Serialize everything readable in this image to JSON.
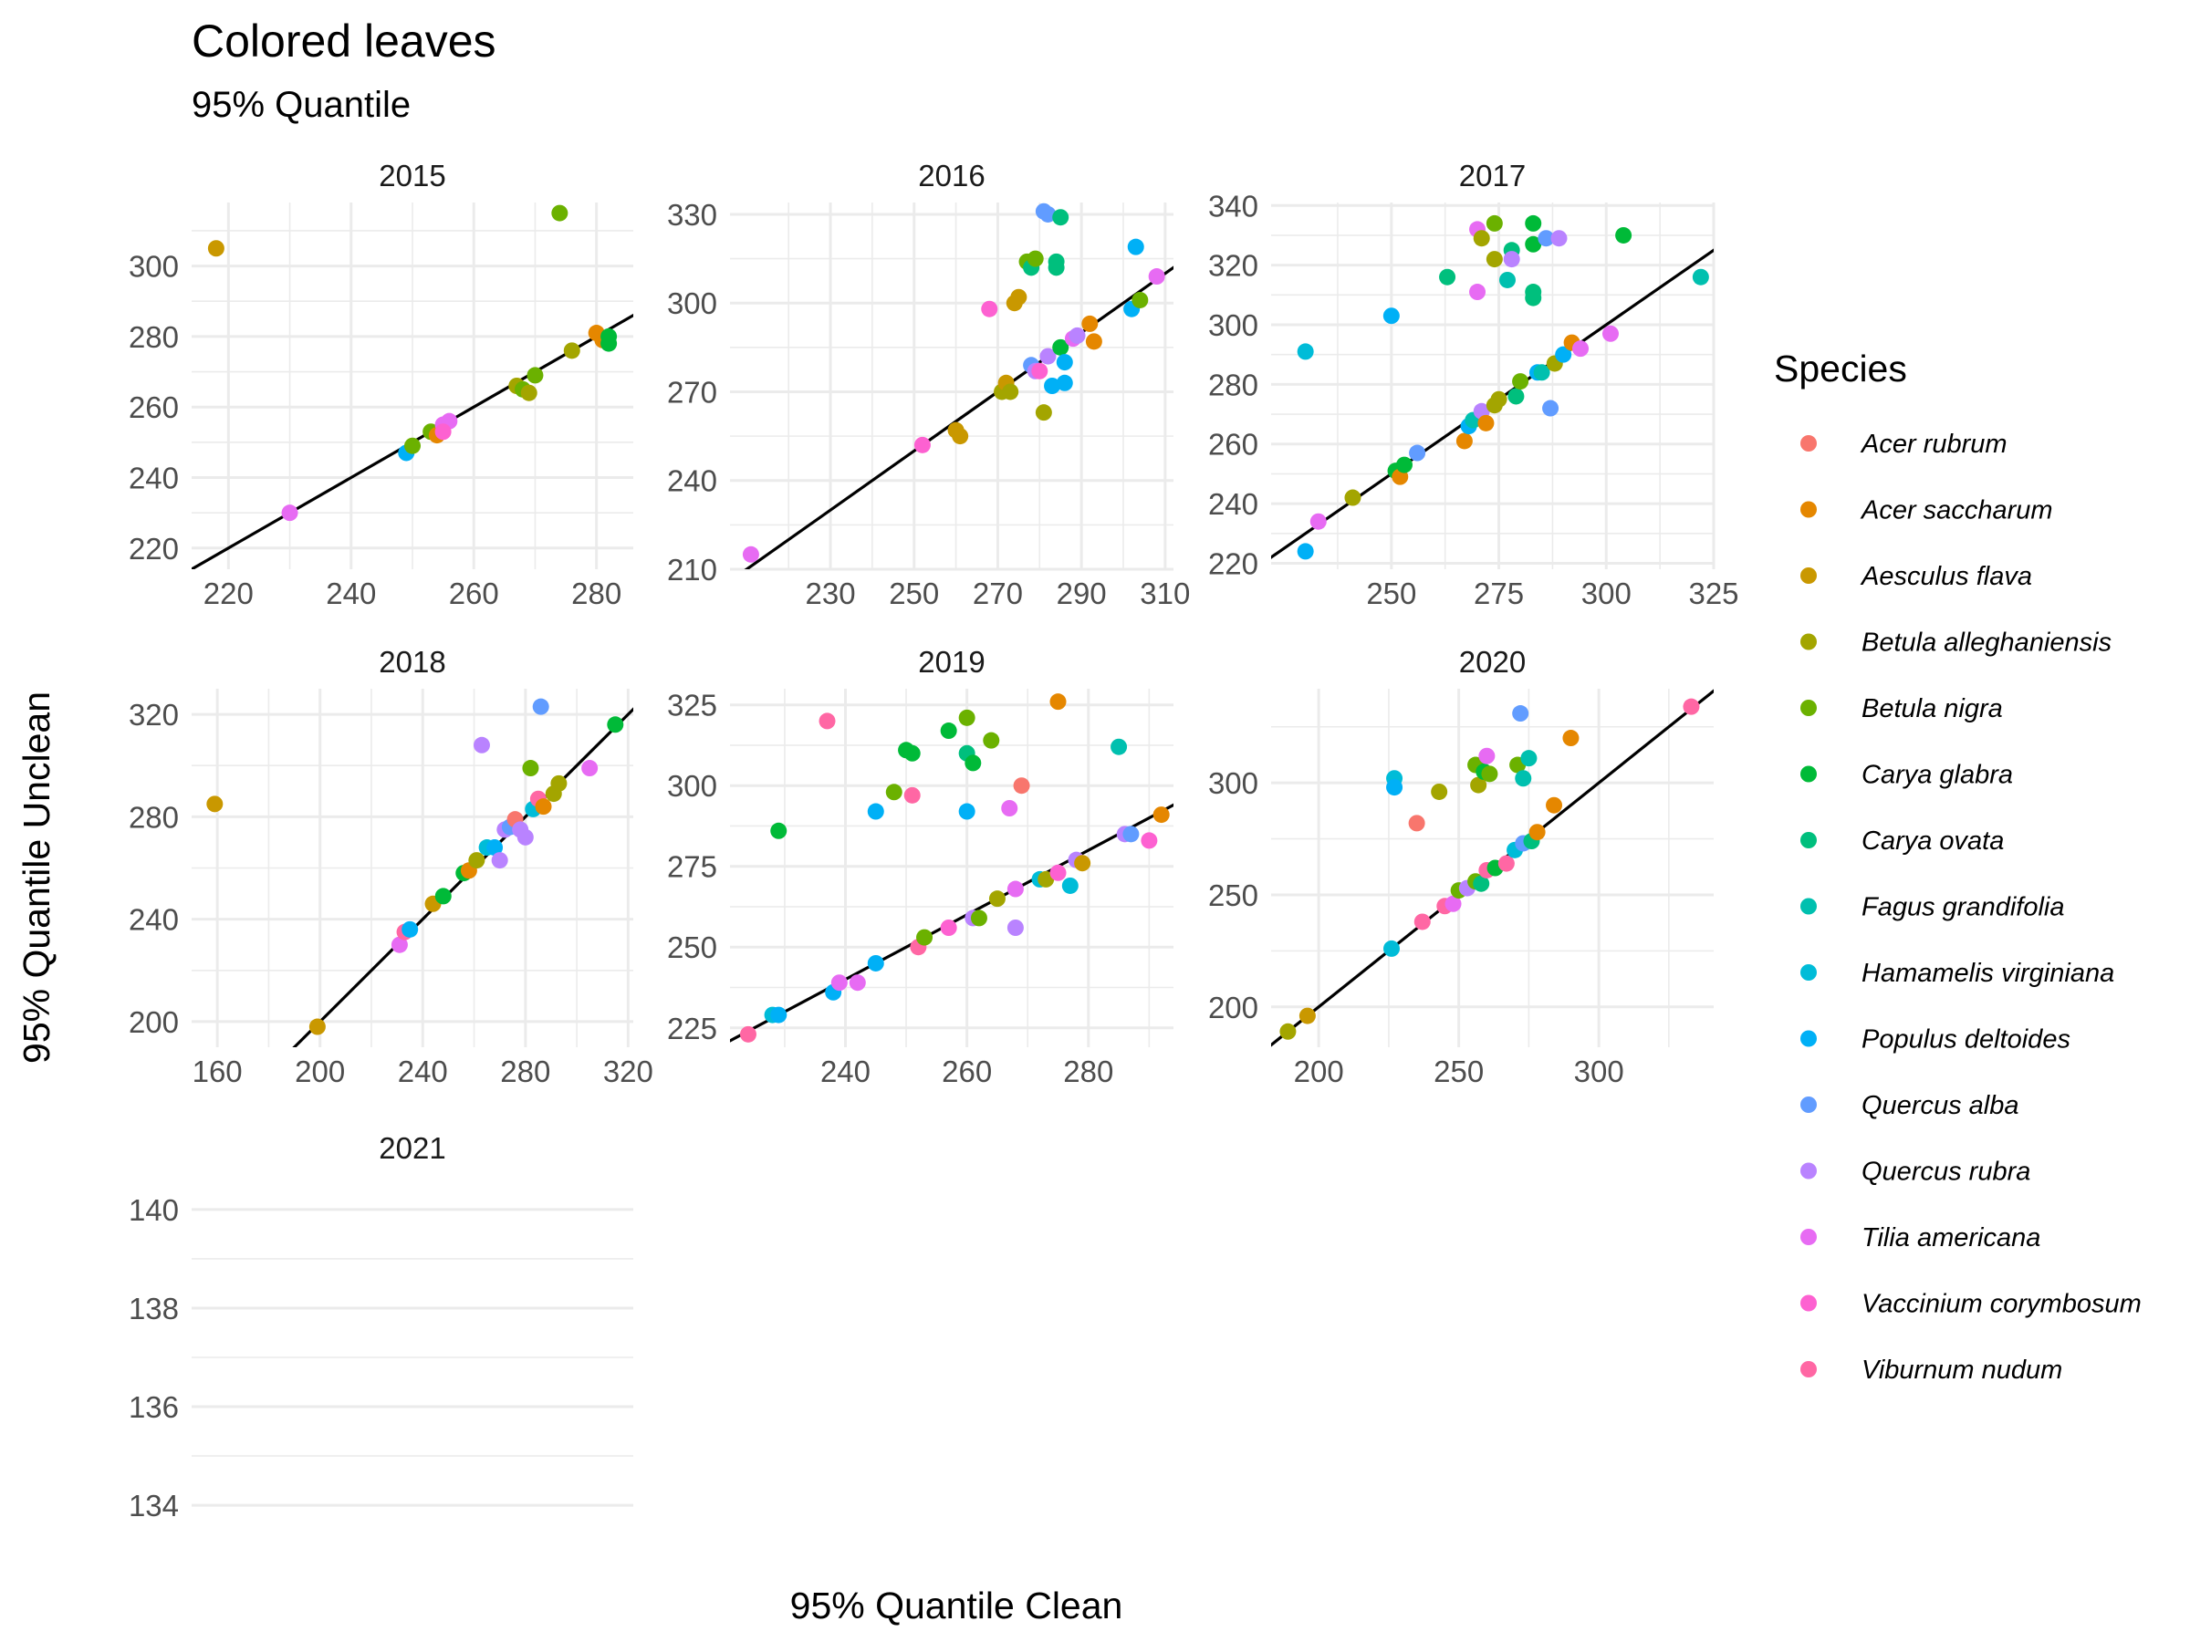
{
  "chart_data": {
    "type": "scatter",
    "title": "Colored leaves",
    "subtitle": "95% Quantile",
    "xlabel": "95% Quantile Clean",
    "ylabel": "95% Quantile Unclean",
    "legend": {
      "title": "Species",
      "placement": "right",
      "entries": [
        {
          "name": "Acer rubrum",
          "color": "#F8766D"
        },
        {
          "name": "Acer saccharum",
          "color": "#E58700"
        },
        {
          "name": "Aesculus flava",
          "color": "#C99800"
        },
        {
          "name": "Betula alleghaniensis",
          "color": "#A3A500"
        },
        {
          "name": "Betula nigra",
          "color": "#6BB100"
        },
        {
          "name": "Carya glabra",
          "color": "#00BA38"
        },
        {
          "name": "Carya ovata",
          "color": "#00BF7D"
        },
        {
          "name": "Fagus grandifolia",
          "color": "#00C0AF"
        },
        {
          "name": "Hamamelis virginiana",
          "color": "#00BCD8"
        },
        {
          "name": "Populus deltoides",
          "color": "#00B0F6"
        },
        {
          "name": "Quercus alba",
          "color": "#619CFF"
        },
        {
          "name": "Quercus rubra",
          "color": "#B983FF"
        },
        {
          "name": "Tilia americana",
          "color": "#E76BF3"
        },
        {
          "name": "Vaccinium corymbosum",
          "color": "#FD61D1"
        },
        {
          "name": "Viburnum nudum",
          "color": "#FF67A4"
        }
      ]
    },
    "grid": true,
    "reference_line": "y = x",
    "panels": [
      {
        "label": "2015",
        "xlim": [
          214,
          286
        ],
        "ylim": [
          214,
          318
        ],
        "xticks": [
          220,
          240,
          260,
          280
        ],
        "yticks": [
          220,
          240,
          260,
          280,
          300
        ],
        "points": [
          [
            218,
            305,
            2
          ],
          [
            274,
            315,
            4
          ],
          [
            230,
            230,
            12
          ],
          [
            249,
            247,
            9
          ],
          [
            250,
            249,
            4
          ],
          [
            253,
            253,
            4
          ],
          [
            254,
            252,
            1
          ],
          [
            255,
            255,
            12
          ],
          [
            256,
            256,
            12
          ],
          [
            255,
            253,
            13
          ],
          [
            267,
            266,
            3
          ],
          [
            268,
            265,
            4
          ],
          [
            269,
            264,
            3
          ],
          [
            270,
            269,
            4
          ],
          [
            276,
            276,
            3
          ],
          [
            280,
            281,
            1
          ],
          [
            281,
            279,
            1
          ],
          [
            282,
            280,
            5
          ],
          [
            282,
            278,
            5
          ]
        ]
      },
      {
        "label": "2016",
        "xlim": [
          206,
          312
        ],
        "ylim": [
          210,
          334
        ],
        "xticks": [
          230,
          250,
          270,
          290,
          310
        ],
        "yticks": [
          210,
          240,
          270,
          300,
          330
        ],
        "points": [
          [
            211,
            215,
            12
          ],
          [
            252,
            252,
            13
          ],
          [
            260,
            257,
            2
          ],
          [
            261,
            255,
            2
          ],
          [
            268,
            298,
            13
          ],
          [
            271,
            270,
            3
          ],
          [
            272,
            273,
            2
          ],
          [
            273,
            270,
            3
          ],
          [
            274,
            300,
            2
          ],
          [
            275,
            302,
            2
          ],
          [
            277,
            314,
            4
          ],
          [
            278,
            312,
            6
          ],
          [
            278,
            279,
            10
          ],
          [
            279,
            315,
            4
          ],
          [
            279,
            277,
            11
          ],
          [
            280,
            277,
            13
          ],
          [
            281,
            331,
            10
          ],
          [
            281,
            263,
            3
          ],
          [
            282,
            330,
            10
          ],
          [
            282,
            282,
            11
          ],
          [
            283,
            272,
            9
          ],
          [
            284,
            314,
            6
          ],
          [
            284,
            312,
            6
          ],
          [
            285,
            329,
            6
          ],
          [
            285,
            285,
            5
          ],
          [
            286,
            280,
            9
          ],
          [
            286,
            273,
            9
          ],
          [
            288,
            288,
            12
          ],
          [
            289,
            289,
            11
          ],
          [
            292,
            293,
            1
          ],
          [
            293,
            287,
            1
          ],
          [
            302,
            298,
            9
          ],
          [
            303,
            319,
            9
          ],
          [
            304,
            301,
            4
          ],
          [
            308,
            309,
            12
          ]
        ]
      },
      {
        "label": "2017",
        "xlim": [
          222,
          325
        ],
        "ylim": [
          218,
          341
        ],
        "xticks": [
          250,
          275,
          300,
          325
        ],
        "yticks": [
          220,
          240,
          260,
          280,
          300,
          320,
          340
        ],
        "points": [
          [
            230,
            224,
            9
          ],
          [
            230,
            291,
            8
          ],
          [
            233,
            234,
            12
          ],
          [
            241,
            242,
            3
          ],
          [
            250,
            303,
            9
          ],
          [
            251,
            251,
            5
          ],
          [
            252,
            249,
            1
          ],
          [
            253,
            253,
            5
          ],
          [
            256,
            257,
            10
          ],
          [
            263,
            316,
            6
          ],
          [
            267,
            261,
            1
          ],
          [
            268,
            266,
            9
          ],
          [
            269,
            268,
            7
          ],
          [
            270,
            332,
            12
          ],
          [
            270,
            311,
            12
          ],
          [
            271,
            329,
            3
          ],
          [
            271,
            271,
            11
          ],
          [
            272,
            267,
            1
          ],
          [
            274,
            273,
            3
          ],
          [
            274,
            334,
            4
          ],
          [
            274,
            322,
            3
          ],
          [
            275,
            275,
            3
          ],
          [
            277,
            315,
            7
          ],
          [
            278,
            325,
            6
          ],
          [
            278,
            322,
            11
          ],
          [
            279,
            276,
            6
          ],
          [
            280,
            281,
            4
          ],
          [
            283,
            334,
            5
          ],
          [
            283,
            327,
            5
          ],
          [
            283,
            311,
            6
          ],
          [
            283,
            309,
            6
          ],
          [
            284,
            284,
            9
          ],
          [
            285,
            284,
            7
          ],
          [
            286,
            329,
            10
          ],
          [
            287,
            272,
            10
          ],
          [
            288,
            287,
            3
          ],
          [
            289,
            329,
            11
          ],
          [
            290,
            290,
            9
          ],
          [
            292,
            294,
            1
          ],
          [
            294,
            292,
            12
          ],
          [
            301,
            297,
            12
          ],
          [
            304,
            330,
            5
          ],
          [
            322,
            316,
            7
          ]
        ]
      },
      {
        "label": "2018",
        "xlim": [
          150,
          322
        ],
        "ylim": [
          190,
          330
        ],
        "xticks": [
          160,
          200,
          240,
          280,
          320
        ],
        "yticks": [
          200,
          240,
          280,
          320
        ],
        "points": [
          [
            159,
            285,
            2
          ],
          [
            199,
            198,
            2
          ],
          [
            231,
            230,
            12
          ],
          [
            233,
            235,
            14
          ],
          [
            235,
            236,
            9
          ],
          [
            244,
            246,
            2
          ],
          [
            248,
            249,
            5
          ],
          [
            256,
            258,
            5
          ],
          [
            258,
            259,
            1
          ],
          [
            261,
            263,
            3
          ],
          [
            263,
            308,
            11
          ],
          [
            265,
            268,
            8
          ],
          [
            268,
            268,
            9
          ],
          [
            270,
            263,
            11
          ],
          [
            272,
            275,
            11
          ],
          [
            274,
            276,
            10
          ],
          [
            276,
            279,
            0
          ],
          [
            278,
            275,
            11
          ],
          [
            280,
            272,
            11
          ],
          [
            282,
            299,
            4
          ],
          [
            283,
            283,
            8
          ],
          [
            285,
            287,
            14
          ],
          [
            286,
            323,
            10
          ],
          [
            287,
            284,
            1
          ],
          [
            291,
            289,
            3
          ],
          [
            293,
            293,
            3
          ],
          [
            305,
            299,
            12
          ],
          [
            315,
            316,
            5
          ]
        ]
      },
      {
        "label": "2019",
        "xlim": [
          221,
          294
        ],
        "ylim": [
          219,
          330
        ],
        "xticks": [
          240,
          260,
          280
        ],
        "yticks": [
          225,
          250,
          275,
          300,
          325
        ],
        "points": [
          [
            224,
            223,
            14
          ],
          [
            228,
            229,
            8
          ],
          [
            229,
            229,
            9
          ],
          [
            229,
            286,
            5
          ],
          [
            237,
            320,
            14
          ],
          [
            238,
            236,
            9
          ],
          [
            239,
            239,
            12
          ],
          [
            242,
            239,
            12
          ],
          [
            245,
            292,
            9
          ],
          [
            245,
            245,
            9
          ],
          [
            248,
            298,
            4
          ],
          [
            250,
            311,
            5
          ],
          [
            251,
            310,
            5
          ],
          [
            251,
            297,
            14
          ],
          [
            252,
            250,
            14
          ],
          [
            253,
            253,
            4
          ],
          [
            257,
            317,
            5
          ],
          [
            257,
            256,
            13
          ],
          [
            260,
            321,
            4
          ],
          [
            260,
            310,
            6
          ],
          [
            260,
            292,
            9
          ],
          [
            261,
            307,
            5
          ],
          [
            261,
            259,
            11
          ],
          [
            262,
            259,
            4
          ],
          [
            264,
            314,
            4
          ],
          [
            265,
            265,
            3
          ],
          [
            267,
            293,
            12
          ],
          [
            268,
            256,
            11
          ],
          [
            268,
            268,
            12
          ],
          [
            269,
            300,
            0
          ],
          [
            272,
            271,
            8
          ],
          [
            273,
            271,
            3
          ],
          [
            275,
            326,
            1
          ],
          [
            275,
            273,
            13
          ],
          [
            277,
            269,
            8
          ],
          [
            278,
            277,
            11
          ],
          [
            279,
            276,
            2
          ],
          [
            285,
            312,
            7
          ],
          [
            286,
            285,
            11
          ],
          [
            287,
            285,
            10
          ],
          [
            290,
            283,
            13
          ],
          [
            292,
            291,
            1
          ]
        ]
      },
      {
        "label": "2020",
        "xlim": [
          183,
          341
        ],
        "ylim": [
          182,
          342
        ],
        "xticks": [
          200,
          250,
          300
        ],
        "yticks": [
          200,
          250,
          300
        ],
        "points": [
          [
            189,
            189,
            3
          ],
          [
            196,
            196,
            2
          ],
          [
            226,
            226,
            8
          ],
          [
            227,
            302,
            8
          ],
          [
            227,
            298,
            9
          ],
          [
            235,
            282,
            0
          ],
          [
            237,
            238,
            14
          ],
          [
            243,
            296,
            3
          ],
          [
            245,
            245,
            14
          ],
          [
            248,
            246,
            12
          ],
          [
            250,
            252,
            4
          ],
          [
            253,
            253,
            11
          ],
          [
            256,
            256,
            4
          ],
          [
            256,
            308,
            4
          ],
          [
            257,
            299,
            3
          ],
          [
            258,
            255,
            6
          ],
          [
            259,
            305,
            5
          ],
          [
            260,
            261,
            14
          ],
          [
            260,
            312,
            12
          ],
          [
            261,
            304,
            4
          ],
          [
            263,
            262,
            5
          ],
          [
            267,
            264,
            14
          ],
          [
            270,
            270,
            8
          ],
          [
            271,
            308,
            4
          ],
          [
            272,
            331,
            10
          ],
          [
            273,
            302,
            7
          ],
          [
            273,
            273,
            10
          ],
          [
            275,
            311,
            7
          ],
          [
            276,
            274,
            6
          ],
          [
            278,
            278,
            1
          ],
          [
            284,
            290,
            1
          ],
          [
            290,
            320,
            1
          ],
          [
            333,
            334,
            14
          ]
        ]
      },
      {
        "label": "2021",
        "xlim": [
          0,
          1
        ],
        "ylim": [
          133.3,
          140.7
        ],
        "xticks": [],
        "yticks": [
          134,
          136,
          138,
          140
        ],
        "points": []
      }
    ]
  }
}
